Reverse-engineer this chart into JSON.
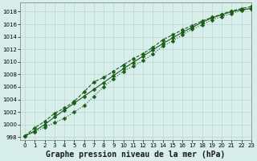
{
  "title": "Graphe pression niveau de la mer (hPa)",
  "xlim": [
    -0.5,
    23
  ],
  "ylim": [
    997.5,
    1019.5
  ],
  "yticks": [
    998,
    1000,
    1002,
    1004,
    1006,
    1008,
    1010,
    1012,
    1014,
    1016,
    1018
  ],
  "xticks": [
    0,
    1,
    2,
    3,
    4,
    5,
    6,
    7,
    8,
    9,
    10,
    11,
    12,
    13,
    14,
    15,
    16,
    17,
    18,
    19,
    20,
    21,
    22,
    23
  ],
  "bg_color": "#d8eeea",
  "grid_color": "#b8d8d2",
  "line_color": "#1a5c1a",
  "line1_y": [
    998.2,
    999.0,
    1000.0,
    1001.2,
    1002.3,
    1003.4,
    1004.5,
    1005.6,
    1006.7,
    1007.8,
    1008.9,
    1009.9,
    1010.9,
    1011.9,
    1012.9,
    1013.8,
    1014.7,
    1015.5,
    1016.3,
    1017.0,
    1017.5,
    1018.0,
    1018.3,
    1018.5
  ],
  "line2_y": [
    998.2,
    999.5,
    1000.5,
    1001.8,
    1002.6,
    1003.7,
    1005.2,
    1006.8,
    1007.5,
    1008.5,
    1009.5,
    1010.5,
    1011.3,
    1012.3,
    1013.5,
    1014.3,
    1015.1,
    1015.8,
    1016.5,
    1017.1,
    1017.6,
    1018.1,
    1018.5,
    1018.8
  ],
  "line3_y": [
    998.2,
    998.8,
    999.6,
    1000.3,
    1001.0,
    1002.0,
    1003.0,
    1004.5,
    1006.0,
    1007.3,
    1008.5,
    1009.3,
    1010.2,
    1011.2,
    1012.5,
    1013.3,
    1014.3,
    1015.2,
    1015.9,
    1016.7,
    1017.2,
    1017.7,
    1018.2,
    1018.5
  ],
  "marker_size": 2.5,
  "linewidth": 0.8,
  "title_fontsize": 7,
  "tick_fontsize": 5
}
